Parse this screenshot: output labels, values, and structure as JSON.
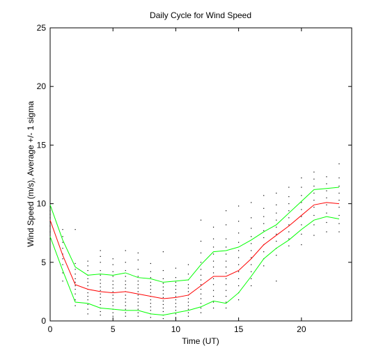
{
  "chart_data": {
    "type": "line",
    "title": "Daily Cycle for Wind Speed",
    "xlabel": "Time (UT)",
    "ylabel": "Wind Speed (m/s), Average +/- 1 sigma",
    "xlim": [
      0,
      24
    ],
    "ylim": [
      0,
      25
    ],
    "xticks": [
      0,
      5,
      10,
      15,
      20
    ],
    "yticks": [
      0,
      5,
      10,
      15,
      20,
      25
    ],
    "grid": false,
    "legend": "none",
    "x": [
      0,
      1,
      2,
      3,
      4,
      5,
      6,
      7,
      8,
      9,
      10,
      11,
      12,
      13,
      14,
      15,
      16,
      17,
      18,
      19,
      20,
      21,
      22,
      23
    ],
    "series": [
      {
        "role": "average",
        "color": "#ff0000",
        "values": [
          8.6,
          5.6,
          3.1,
          2.7,
          2.5,
          2.4,
          2.5,
          2.3,
          2.1,
          1.9,
          2.0,
          2.2,
          3.0,
          3.8,
          3.8,
          4.3,
          5.3,
          6.5,
          7.3,
          8.1,
          9.0,
          9.9,
          10.1,
          10.0
        ]
      },
      {
        "role": "average + 1 sigma",
        "color": "#00ff00",
        "values": [
          9.9,
          6.9,
          4.6,
          3.9,
          4.0,
          3.9,
          4.1,
          3.7,
          3.6,
          3.3,
          3.4,
          3.5,
          4.8,
          5.9,
          6.0,
          6.3,
          6.9,
          7.6,
          8.2,
          9.2,
          10.2,
          11.2,
          11.3,
          11.4
        ]
      },
      {
        "role": "average - 1 sigma",
        "color": "#00ff00",
        "values": [
          7.2,
          4.3,
          1.6,
          1.5,
          1.1,
          1.0,
          0.9,
          0.9,
          0.6,
          0.5,
          0.7,
          0.9,
          1.2,
          1.7,
          1.5,
          2.4,
          3.8,
          5.3,
          6.2,
          6.9,
          7.8,
          8.6,
          8.9,
          8.7
        ]
      }
    ],
    "scatter": {
      "color": "#000000",
      "description_hidden": true,
      "columns": [
        {
          "x": 0,
          "y": [
            7.0,
            7.6,
            8.1,
            8.5,
            8.8,
            9.1,
            9.4,
            9.8
          ]
        },
        {
          "x": 1,
          "y": [
            3.4,
            4.1,
            4.8,
            5.3,
            5.7,
            6.2,
            6.7,
            7.2,
            7.8
          ]
        },
        {
          "x": 2,
          "y": [
            1.3,
            1.8,
            2.3,
            2.7,
            3.0,
            3.3,
            3.6,
            4.0,
            4.4,
            4.9,
            7.8
          ]
        },
        {
          "x": 3,
          "y": [
            0.6,
            1.0,
            1.4,
            1.8,
            2.1,
            2.4,
            2.7,
            3.0,
            3.3,
            3.6,
            3.9,
            4.3,
            4.7,
            5.1
          ]
        },
        {
          "x": 4,
          "y": [
            0.5,
            0.8,
            1.1,
            1.4,
            1.7,
            2.0,
            2.3,
            2.6,
            2.9,
            3.2,
            3.5,
            3.9,
            4.3,
            5.0,
            5.5,
            6.0
          ]
        },
        {
          "x": 5,
          "y": [
            0.4,
            0.7,
            1.0,
            1.3,
            1.6,
            1.9,
            2.2,
            2.5,
            2.8,
            3.1,
            3.4,
            3.8,
            4.2,
            4.8,
            5.3
          ]
        },
        {
          "x": 6,
          "y": [
            0.4,
            0.7,
            1.0,
            1.3,
            1.6,
            1.9,
            2.2,
            2.5,
            2.8,
            3.1,
            3.4,
            3.8,
            4.3,
            5.0,
            6.0
          ]
        },
        {
          "x": 7,
          "y": [
            0.4,
            0.7,
            1.0,
            1.3,
            1.6,
            1.9,
            2.2,
            2.5,
            2.8,
            3.1,
            3.4,
            3.8,
            4.4,
            5.2,
            5.8
          ]
        },
        {
          "x": 8,
          "y": [
            0.3,
            0.6,
            0.9,
            1.2,
            1.5,
            1.8,
            2.1,
            2.4,
            2.7,
            3.0,
            3.3,
            3.7,
            4.2,
            4.9
          ]
        },
        {
          "x": 9,
          "y": [
            0.2,
            0.5,
            0.8,
            1.1,
            1.4,
            1.7,
            2.0,
            2.3,
            2.6,
            2.9,
            3.2,
            3.6,
            4.3,
            5.9
          ]
        },
        {
          "x": 10,
          "y": [
            0.3,
            0.6,
            0.9,
            1.2,
            1.5,
            1.8,
            2.1,
            2.4,
            2.7,
            3.0,
            3.3,
            3.7,
            4.5
          ]
        },
        {
          "x": 11,
          "y": [
            0.4,
            0.7,
            1.0,
            1.3,
            1.6,
            1.9,
            2.2,
            2.5,
            2.8,
            3.1,
            3.5,
            4.0,
            4.8
          ]
        },
        {
          "x": 12,
          "y": [
            0.7,
            1.1,
            1.5,
            1.9,
            2.3,
            2.7,
            3.1,
            3.5,
            3.9,
            4.4,
            5.0,
            5.8,
            6.8,
            8.6
          ]
        },
        {
          "x": 13,
          "y": [
            1.1,
            1.6,
            2.1,
            2.6,
            3.1,
            3.6,
            4.1,
            4.6,
            5.1,
            5.7,
            6.3,
            7.0,
            8.0
          ]
        },
        {
          "x": 14,
          "y": [
            1.1,
            1.6,
            2.1,
            2.6,
            3.1,
            3.6,
            4.1,
            4.6,
            5.1,
            5.7,
            6.3,
            7.0,
            8.2,
            9.4
          ]
        },
        {
          "x": 15,
          "y": [
            1.8,
            2.4,
            3.0,
            3.6,
            4.2,
            4.8,
            5.4,
            6.0,
            6.7,
            7.5,
            8.5,
            9.8
          ]
        },
        {
          "x": 16,
          "y": [
            3.0,
            3.6,
            4.2,
            4.8,
            5.4,
            6.0,
            6.6,
            7.2,
            7.9,
            8.8,
            10.1
          ]
        },
        {
          "x": 17,
          "y": [
            4.7,
            5.3,
            5.9,
            6.5,
            7.1,
            7.7,
            8.3,
            8.9,
            9.6,
            10.7
          ]
        },
        {
          "x": 18,
          "y": [
            3.4,
            5.6,
            6.2,
            6.8,
            7.4,
            8.0,
            8.6,
            9.2,
            9.9,
            10.9
          ]
        },
        {
          "x": 19,
          "y": [
            6.4,
            7.0,
            7.6,
            8.2,
            8.8,
            9.4,
            10.0,
            10.6,
            11.4
          ]
        },
        {
          "x": 20,
          "y": [
            6.5,
            7.4,
            8.2,
            8.9,
            9.5,
            10.1,
            10.7,
            11.4,
            12.2
          ]
        },
        {
          "x": 21,
          "y": [
            7.3,
            8.2,
            9.0,
            9.7,
            10.3,
            10.9,
            11.5,
            12.1,
            12.7
          ]
        },
        {
          "x": 22,
          "y": [
            7.6,
            8.4,
            9.2,
            9.9,
            10.5,
            11.1,
            11.7,
            12.3
          ]
        },
        {
          "x": 23,
          "y": [
            7.6,
            8.3,
            9.0,
            9.7,
            10.3,
            10.9,
            11.5,
            12.2,
            13.4
          ]
        }
      ]
    }
  }
}
